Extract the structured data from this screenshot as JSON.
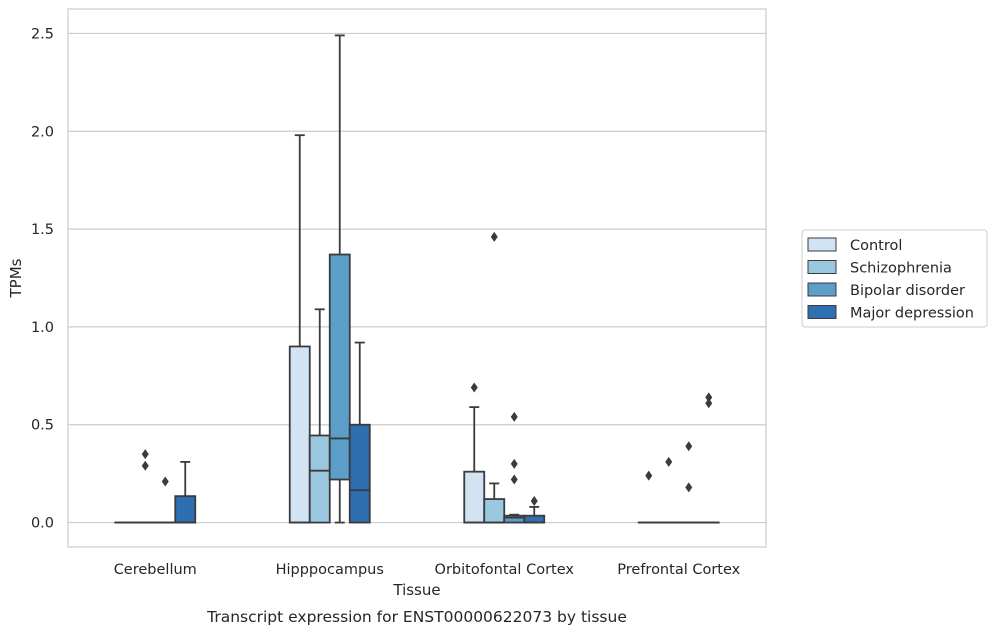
{
  "chart_data": {
    "type": "box",
    "xlabel": "Tissue",
    "ylabel": "TPMs",
    "caption": "Transcript expression for ENST00000622073 by tissue",
    "ylim": [
      -0.125,
      2.625
    ],
    "yticks": [
      0.0,
      0.5,
      1.0,
      1.5,
      2.0,
      2.5
    ],
    "ytick_labels": [
      "0.0",
      "0.5",
      "1.0",
      "1.5",
      "2.0",
      "2.5"
    ],
    "grid": true,
    "legend_position": "right",
    "categories": [
      "Cerebellum",
      "Hipppocampus",
      "Orbitofontal Cortex",
      "Prefrontal Cortex"
    ],
    "series": [
      {
        "name": "Control",
        "color": "#d2e3f3",
        "boxes": [
          {
            "q1": 0,
            "median": 0,
            "q3": 0,
            "whislo": 0,
            "whishi": 0,
            "fliers": []
          },
          {
            "q1": 0,
            "median": 0,
            "q3": 0.9,
            "whislo": 0,
            "whishi": 1.98,
            "fliers": []
          },
          {
            "q1": 0,
            "median": 0,
            "q3": 0.26,
            "whislo": 0,
            "whishi": 0.59,
            "fliers": [
              0.69
            ]
          },
          {
            "q1": 0,
            "median": 0,
            "q3": 0,
            "whislo": 0,
            "whishi": 0,
            "fliers": [
              0.24
            ]
          }
        ]
      },
      {
        "name": "Schizophrenia",
        "color": "#9ac8e0",
        "boxes": [
          {
            "q1": 0,
            "median": 0,
            "q3": 0,
            "whislo": 0,
            "whishi": 0,
            "fliers": [
              0.29,
              0.35
            ]
          },
          {
            "q1": 0,
            "median": 0.265,
            "q3": 0.445,
            "whislo": 0,
            "whishi": 1.09,
            "fliers": []
          },
          {
            "q1": 0,
            "median": 0,
            "q3": 0.12,
            "whislo": 0,
            "whishi": 0.2,
            "fliers": [
              1.46
            ]
          },
          {
            "q1": 0,
            "median": 0,
            "q3": 0,
            "whislo": 0,
            "whishi": 0,
            "fliers": [
              0.31
            ]
          }
        ]
      },
      {
        "name": "Bipolar disorder",
        "color": "#5a9ec9",
        "boxes": [
          {
            "q1": 0,
            "median": 0,
            "q3": 0,
            "whislo": 0,
            "whishi": 0,
            "fliers": [
              0.21
            ]
          },
          {
            "q1": 0.22,
            "median": 0.43,
            "q3": 1.37,
            "whislo": 0,
            "whishi": 2.49,
            "fliers": []
          },
          {
            "q1": 0,
            "median": 0.025,
            "q3": 0.035,
            "whislo": 0,
            "whishi": 0.04,
            "fliers": [
              0.22,
              0.3,
              0.54
            ]
          },
          {
            "q1": 0,
            "median": 0,
            "q3": 0,
            "whislo": 0,
            "whishi": 0,
            "fliers": [
              0.18,
              0.39
            ]
          }
        ]
      },
      {
        "name": "Major depression",
        "color": "#2d6fb0",
        "boxes": [
          {
            "q1": 0,
            "median": 0,
            "q3": 0.135,
            "whislo": 0,
            "whishi": 0.31,
            "fliers": []
          },
          {
            "q1": 0,
            "median": 0.165,
            "q3": 0.5,
            "whislo": 0,
            "whishi": 0.92,
            "fliers": []
          },
          {
            "q1": 0,
            "median": 0,
            "q3": 0.035,
            "whislo": 0,
            "whishi": 0.08,
            "fliers": [
              0.11
            ]
          },
          {
            "q1": 0,
            "median": 0,
            "q3": 0,
            "whislo": 0,
            "whishi": 0,
            "fliers": [
              0.61,
              0.64
            ]
          }
        ]
      }
    ]
  }
}
